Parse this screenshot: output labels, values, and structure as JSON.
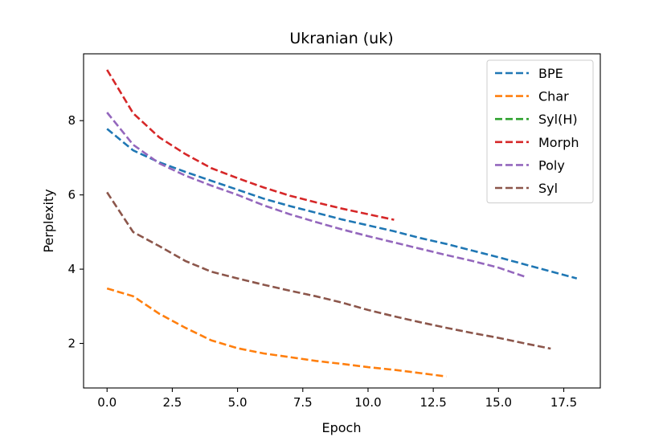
{
  "chart_data": {
    "type": "line",
    "title": "Ukranian (uk)",
    "xlabel": "Epoch",
    "ylabel": "Perplexity",
    "xlim": [
      -0.9,
      18.9
    ],
    "ylim": [
      0.8,
      9.8
    ],
    "xticks": [
      0.0,
      2.5,
      5.0,
      7.5,
      10.0,
      12.5,
      15.0,
      17.5
    ],
    "xtick_labels": [
      "0.0",
      "2.5",
      "5.0",
      "7.5",
      "10.0",
      "12.5",
      "15.0",
      "17.5"
    ],
    "yticks": [
      2,
      4,
      6,
      8
    ],
    "ytick_labels": [
      "2",
      "4",
      "6",
      "8"
    ],
    "grid": false,
    "legend_position": "top-right",
    "line_style": "dashed",
    "series": [
      {
        "name": "BPE",
        "color": "#1f77b4",
        "x": [
          0,
          1,
          2,
          3,
          4,
          5,
          6,
          7,
          8,
          9,
          10,
          11,
          12,
          13,
          14,
          15,
          16,
          17,
          18
        ],
        "y": [
          7.78,
          7.2,
          6.88,
          6.62,
          6.38,
          6.14,
          5.9,
          5.7,
          5.52,
          5.34,
          5.18,
          5.02,
          4.84,
          4.68,
          4.5,
          4.32,
          4.13,
          3.94,
          3.75
        ]
      },
      {
        "name": "Char",
        "color": "#ff7f0e",
        "x": [
          0,
          1,
          2,
          3,
          4,
          5,
          6,
          7,
          8,
          9,
          10,
          11,
          12,
          13
        ],
        "y": [
          3.48,
          3.27,
          2.8,
          2.42,
          2.08,
          1.87,
          1.73,
          1.63,
          1.53,
          1.45,
          1.36,
          1.29,
          1.2,
          1.11
        ]
      },
      {
        "name": "Syl(H)",
        "color": "#2ca02c",
        "x": [],
        "y": []
      },
      {
        "name": "Morph",
        "color": "#d62728",
        "x": [
          0,
          1,
          2,
          3,
          4,
          5,
          6,
          7,
          8,
          9,
          10,
          11
        ],
        "y": [
          9.37,
          8.2,
          7.55,
          7.1,
          6.72,
          6.45,
          6.2,
          5.98,
          5.8,
          5.63,
          5.48,
          5.33
        ]
      },
      {
        "name": "Poly",
        "color": "#9467bd",
        "x": [
          0,
          1,
          2,
          3,
          4,
          5,
          6,
          7,
          8,
          9,
          10,
          11,
          12,
          13,
          14,
          15,
          16
        ],
        "y": [
          8.22,
          7.35,
          6.85,
          6.52,
          6.25,
          6.0,
          5.72,
          5.48,
          5.27,
          5.07,
          4.89,
          4.72,
          4.55,
          4.38,
          4.22,
          4.04,
          3.8
        ]
      },
      {
        "name": "Syl",
        "color": "#8c564b",
        "x": [
          0,
          1,
          2,
          3,
          4,
          5,
          6,
          7,
          8,
          9,
          10,
          11,
          12,
          13,
          14,
          15,
          16,
          17
        ],
        "y": [
          6.07,
          5.0,
          4.62,
          4.22,
          3.93,
          3.75,
          3.58,
          3.42,
          3.27,
          3.1,
          2.9,
          2.73,
          2.57,
          2.42,
          2.28,
          2.15,
          2.0,
          1.86
        ]
      }
    ]
  }
}
